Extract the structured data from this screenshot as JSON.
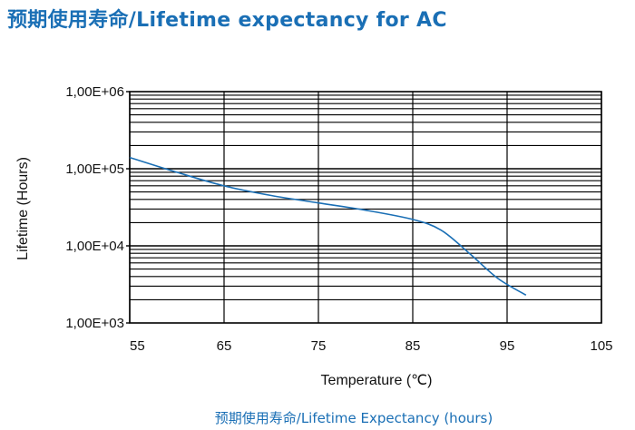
{
  "page": {
    "title": "预期使用寿命/Lifetime expectancy for AC",
    "caption": "预期使用寿命/Lifetime Expectancy (hours)"
  },
  "colors": {
    "title": "#1a6fb5",
    "curve": "#1a6fb5",
    "grid": "#000000"
  },
  "chart_data": {
    "type": "line",
    "title": "预期使用寿命/Lifetime expectancy for AC",
    "xlabel": "Temperature (℃)",
    "ylabel": "Lifetime (Hours)",
    "xlim": [
      55,
      105
    ],
    "ylim": [
      1000,
      1000000
    ],
    "yscale": "log",
    "grid": true,
    "x_ticks": [
      55,
      65,
      75,
      85,
      95,
      105
    ],
    "x_tick_labels": [
      "55",
      "65",
      "75",
      "85",
      "95",
      "105"
    ],
    "y_ticks": [
      1000,
      10000,
      100000,
      1000000
    ],
    "y_tick_labels": [
      "1,00E+03",
      "1,00E+04",
      "1,00E+05",
      "1,00E+06"
    ],
    "series": [
      {
        "x": [
          55,
          60,
          65,
          70,
          75,
          80,
          85,
          88,
          91,
          94,
          97
        ],
        "y": [
          140000,
          90000,
          60000,
          45000,
          36000,
          29000,
          22000,
          16000,
          8000,
          3800,
          2300
        ]
      }
    ]
  }
}
